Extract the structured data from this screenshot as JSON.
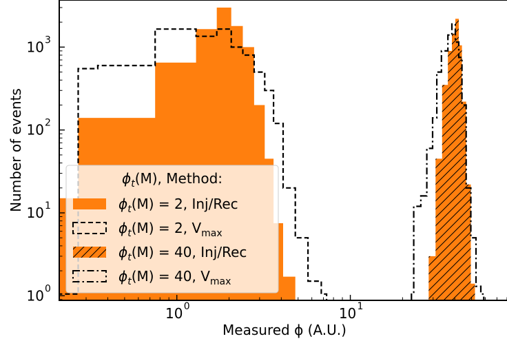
{
  "chart_data": {
    "type": "histogram",
    "x_scale": "log",
    "y_scale": "log",
    "xlabel": "Measured ϕ (A.U.)",
    "ylabel": "Number of events",
    "xlim": [
      0.21,
      80
    ],
    "ylim": [
      0.88,
      3700
    ],
    "x_ticks": [
      {
        "value": 1,
        "base": "10",
        "exp": "0"
      },
      {
        "value": 10,
        "base": "10",
        "exp": "1"
      }
    ],
    "y_ticks": [
      {
        "value": 1,
        "base": "10",
        "exp": "0"
      },
      {
        "value": 10,
        "base": "10",
        "exp": "1"
      },
      {
        "value": 100,
        "base": "10",
        "exp": "2"
      },
      {
        "value": 1000,
        "base": "10",
        "exp": "3"
      }
    ],
    "grid": false,
    "legend": {
      "placement": "lower-left",
      "title": "ϕt(M), Method:",
      "title_parts": {
        "phi": "ϕ",
        "sub": "t",
        "rest": "(M), Method:"
      }
    },
    "series": [
      {
        "name": "ϕt(M) = 2, Inj/Rec",
        "label_parts": {
          "phi": "ϕ",
          "sub": "t",
          "rest": "(M) = 2, Inj/Rec",
          "unit": ""
        },
        "style": "filled",
        "color": "#ff7f0e",
        "edges": [
          0.16,
          0.27,
          0.75,
          1.29,
          1.7,
          2.06,
          2.4,
          2.79,
          3.21,
          3.61,
          4.1,
          4.82
        ],
        "counts": [
          15,
          140,
          650,
          1650,
          3000,
          1800,
          1000,
          200,
          45,
          7.5,
          1.7
        ]
      },
      {
        "name": "ϕt(M) = 2, Vmax",
        "label_parts": {
          "phi": "ϕ",
          "sub": "t",
          "rest": "(M) = 2, V",
          "unit": "max"
        },
        "style": "dashed",
        "color": "#000000",
        "edges": [
          0.165,
          0.27,
          0.35,
          0.75,
          1.29,
          1.7,
          2.06,
          2.4,
          2.79,
          3.21,
          3.61,
          4.1,
          4.82,
          5.7,
          6.8,
          7.3
        ],
        "counts": [
          1.05,
          550,
          600,
          1650,
          1350,
          1650,
          1000,
          800,
          500,
          300,
          120,
          20,
          5,
          1.5,
          1.05
        ]
      },
      {
        "name": "ϕt(M) = 40, Inj/Rec",
        "label_parts": {
          "phi": "ϕ",
          "sub": "t",
          "rest": "(M) = 40, Inj/Rec",
          "unit": ""
        },
        "style": "hatched",
        "color": "#ff7f0e",
        "edges": [
          28.3,
          31.0,
          33.8,
          36.5,
          38.5,
          40.3,
          42.2,
          44.0,
          46.5,
          49.5,
          52.3
        ],
        "counts": [
          3,
          45,
          350,
          900,
          1450,
          2200,
          1050,
          220,
          22,
          1.4
        ]
      },
      {
        "name": "ϕt(M) = 40, Vmax",
        "label_parts": {
          "phi": "ϕ",
          "sub": "t",
          "rest": "(M) = 40, V",
          "unit": "max"
        },
        "style": "dashdot",
        "color": "#000000",
        "edges": [
          22.5,
          23.2,
          25.5,
          27.6,
          29.8,
          31.5,
          33.5,
          36.5,
          38.5,
          40.3,
          42.2,
          44.0,
          46.5,
          49.5,
          53.0,
          56.5,
          58.8
        ],
        "counts": [
          1.1,
          12,
          16,
          60,
          140,
          500,
          900,
          1400,
          1900,
          1150,
          750,
          200,
          20,
          5,
          1.3,
          1.05
        ]
      }
    ]
  }
}
